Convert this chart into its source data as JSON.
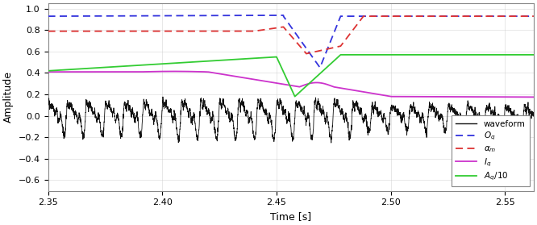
{
  "title": "",
  "xlabel": "Time [s]",
  "ylabel": "Amplitude",
  "xlim": [
    2.35,
    2.5625
  ],
  "ylim": [
    -0.7,
    1.05
  ],
  "yticks": [
    1.0,
    0.8,
    0.6,
    0.4,
    0.2,
    0.0,
    -0.2,
    -0.4,
    -0.6
  ],
  "xticks": [
    2.35,
    2.4,
    2.45,
    2.5,
    2.55
  ],
  "waveform_color": "#111111",
  "oq_color": "#3333dd",
  "am_color": "#dd3333",
  "iq_color": "#cc33cc",
  "aq_color": "#33cc33",
  "background_color": "#ffffff",
  "legend_labels": [
    "waveform",
    "O_q",
    "alpha_m",
    "I_q",
    "A_q/10"
  ]
}
